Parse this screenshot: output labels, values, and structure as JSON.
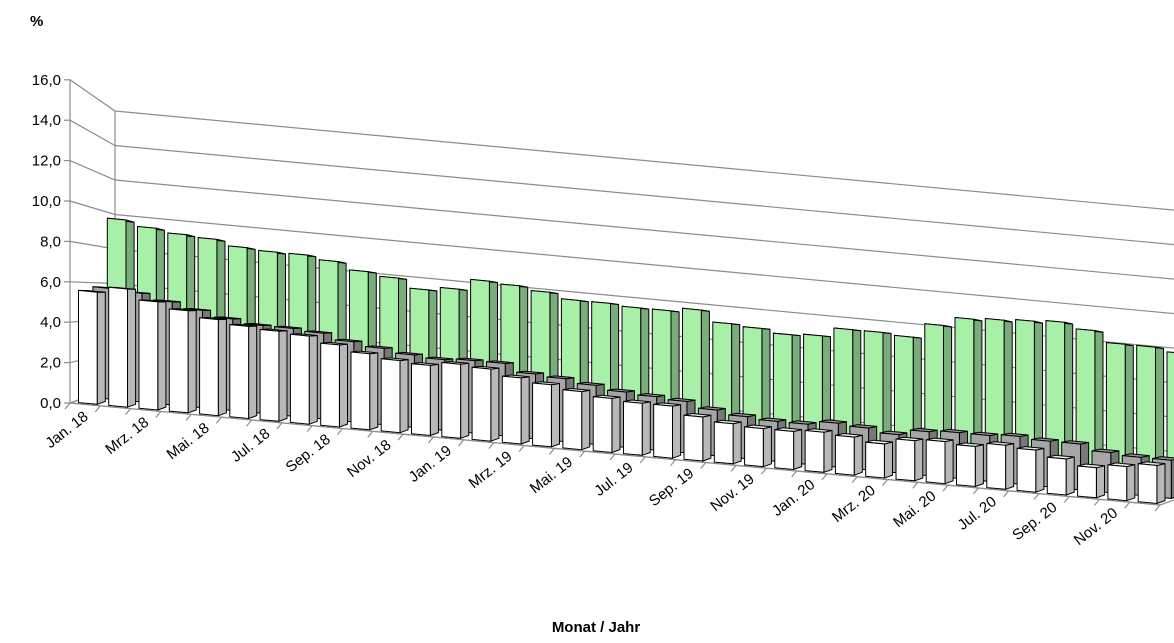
{
  "chart_data": {
    "type": "bar",
    "style": "3d-clustered-column",
    "ylabel": "%",
    "xlabel": "Monat / Jahr",
    "ylim": [
      0,
      16
    ],
    "yticks": [
      "0,0",
      "2,0",
      "4,0",
      "6,0",
      "8,0",
      "10,0",
      "12,0",
      "14,0",
      "16,0"
    ],
    "grid": true,
    "legend": "none",
    "categories": [
      "Jan. 18",
      "Feb. 18",
      "Mrz. 18",
      "Apr. 18",
      "Mai. 18",
      "Jun. 18",
      "Jul. 18",
      "Aug. 18",
      "Sep. 18",
      "Okt. 18",
      "Nov. 18",
      "Dez. 18",
      "Jan. 19",
      "Feb. 19",
      "Mrz. 19",
      "Apr. 19",
      "Mai. 19",
      "Jun. 19",
      "Jul. 19",
      "Aug. 19",
      "Sep. 19",
      "Okt. 19",
      "Nov. 19",
      "Dez. 19",
      "Jan. 20",
      "Feb. 20",
      "Mrz. 20",
      "Apr. 20",
      "Mai. 20",
      "Jun. 20",
      "Jul. 20",
      "Aug. 20",
      "Sep. 20",
      "Okt. 20",
      "Nov. 20",
      "Dez. 20"
    ],
    "tick_labels": [
      "Jan. 18",
      "Mrz. 18",
      "Mai. 18",
      "Jul. 18",
      "Sep. 18",
      "Nov. 18",
      "Jan. 19",
      "Mrz. 19",
      "Mai. 19",
      "Jul. 19",
      "Sep. 19",
      "Nov. 19",
      "Jan. 20",
      "Mrz. 20",
      "Mai. 20",
      "Jul. 20",
      "Sep. 20",
      "Nov. 20"
    ],
    "series": [
      {
        "color": "#ffffff",
        "values": [
          5.6,
          5.9,
          5.4,
          5.1,
          4.8,
          4.6,
          4.5,
          4.4,
          4.1,
          3.8,
          3.6,
          3.5,
          3.7,
          3.6,
          3.3,
          3.1,
          2.9,
          2.7,
          2.6,
          2.6,
          2.2,
          2.0,
          1.9,
          1.9,
          2.0,
          1.9,
          1.7,
          2.0,
          2.1,
          2.0,
          2.2,
          2.1,
          1.8,
          1.5,
          1.7,
          1.9
        ]
      },
      {
        "color": "#a6a6a6",
        "values": [
          5.8,
          5.7,
          5.4,
          5.1,
          4.8,
          4.6,
          4.6,
          4.5,
          4.2,
          4.0,
          3.8,
          3.7,
          3.8,
          3.8,
          3.4,
          3.3,
          3.1,
          2.9,
          2.8,
          2.7,
          2.4,
          2.2,
          2.1,
          2.1,
          2.3,
          2.2,
          2.0,
          2.3,
          2.4,
          2.4,
          2.5,
          2.4,
          2.4,
          2.1,
          2.0,
          2.0
        ]
      },
      {
        "color": "#a8f0a8",
        "values": [
          9.6,
          9.3,
          9.1,
          9.0,
          8.7,
          8.6,
          8.6,
          8.4,
          8.0,
          7.8,
          7.3,
          7.5,
          8.1,
          8.0,
          7.8,
          7.5,
          7.5,
          7.4,
          7.4,
          7.6,
          7.0,
          6.9,
          6.7,
          6.8,
          7.3,
          7.3,
          7.2,
          8.0,
          8.5,
          8.6,
          8.7,
          8.8,
          8.5,
          7.9,
          7.9,
          7.7
        ]
      }
    ]
  }
}
